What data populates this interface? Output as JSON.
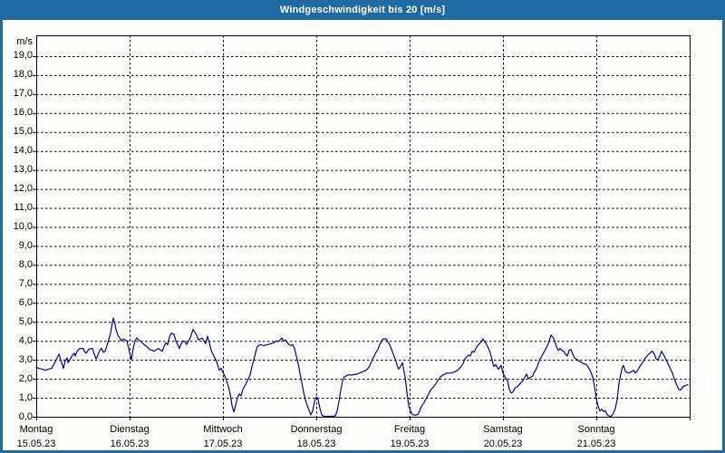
{
  "window": {
    "title": "Windgeschwindigkeit bis 20 [m/s]"
  },
  "axis": {
    "unit_label": "m/s"
  },
  "colors": {
    "titlebar": "#1f6aa1",
    "frame": "#1f6aa1",
    "background": "#fdfefb",
    "line": "#0000a8",
    "grid": "#000000",
    "text": "#000000",
    "title_text": "#ffffff"
  },
  "chart_data": {
    "type": "line",
    "title": "Windgeschwindigkeit bis 20 [m/s]",
    "ylabel": "m/s",
    "ylim": [
      0,
      20
    ],
    "ytick_step": 1,
    "decimal_separator": ",",
    "grid": "dashed",
    "legend": "none",
    "x_unit": "days",
    "xlim": [
      0,
      7
    ],
    "days": [
      {
        "name": "Montag",
        "date": "15.05.23"
      },
      {
        "name": "Dienstag",
        "date": "16.05.23"
      },
      {
        "name": "Mittwoch",
        "date": "17.05.23"
      },
      {
        "name": "Donnerstag",
        "date": "18.05.23"
      },
      {
        "name": "Freitag",
        "date": "19.05.23"
      },
      {
        "name": "Samstag",
        "date": "20.05.23"
      },
      {
        "name": "Sonntag",
        "date": "21.05.23"
      }
    ],
    "series": [
      {
        "name": "Windgeschwindigkeit [m/s]",
        "points": [
          [
            0.0,
            2.6
          ],
          [
            0.029,
            2.55
          ],
          [
            0.068,
            2.5
          ],
          [
            0.097,
            2.45
          ],
          [
            0.126,
            2.5
          ],
          [
            0.165,
            2.55
          ],
          [
            0.194,
            2.8
          ],
          [
            0.223,
            3.1
          ],
          [
            0.243,
            3.3
          ],
          [
            0.262,
            3.0
          ],
          [
            0.282,
            2.7
          ],
          [
            0.291,
            2.55
          ],
          [
            0.311,
            2.95
          ],
          [
            0.33,
            3.1
          ],
          [
            0.34,
            2.85
          ],
          [
            0.359,
            3.0
          ],
          [
            0.388,
            3.25
          ],
          [
            0.408,
            3.35
          ],
          [
            0.417,
            3.2
          ],
          [
            0.437,
            3.45
          ],
          [
            0.466,
            3.6
          ],
          [
            0.505,
            3.6
          ],
          [
            0.515,
            3.45
          ],
          [
            0.534,
            3.35
          ],
          [
            0.563,
            3.55
          ],
          [
            0.583,
            3.6
          ],
          [
            0.602,
            3.6
          ],
          [
            0.621,
            3.3
          ],
          [
            0.641,
            3.05
          ],
          [
            0.66,
            3.25
          ],
          [
            0.68,
            3.5
          ],
          [
            0.699,
            3.6
          ],
          [
            0.718,
            3.4
          ],
          [
            0.738,
            3.45
          ],
          [
            0.757,
            3.75
          ],
          [
            0.777,
            4.05
          ],
          [
            0.796,
            4.4
          ],
          [
            0.806,
            4.7
          ],
          [
            0.825,
            5.2
          ],
          [
            0.845,
            4.85
          ],
          [
            0.854,
            4.6
          ],
          [
            0.874,
            4.3
          ],
          [
            0.893,
            4.15
          ],
          [
            0.913,
            4.0
          ],
          [
            0.932,
            4.1
          ],
          [
            0.951,
            4.05
          ],
          [
            0.971,
            4.0
          ],
          [
            0.99,
            3.6
          ],
          [
            1.01,
            3.2
          ],
          [
            1.019,
            3.0
          ],
          [
            1.039,
            3.6
          ],
          [
            1.058,
            4.0
          ],
          [
            1.078,
            4.15
          ],
          [
            1.097,
            4.05
          ],
          [
            1.126,
            3.95
          ],
          [
            1.155,
            3.8
          ],
          [
            1.184,
            3.7
          ],
          [
            1.214,
            3.55
          ],
          [
            1.243,
            3.5
          ],
          [
            1.262,
            3.45
          ],
          [
            1.291,
            3.55
          ],
          [
            1.311,
            3.6
          ],
          [
            1.33,
            3.5
          ],
          [
            1.35,
            3.45
          ],
          [
            1.369,
            3.7
          ],
          [
            1.388,
            3.9
          ],
          [
            1.408,
            3.8
          ],
          [
            1.427,
            4.2
          ],
          [
            1.447,
            4.4
          ],
          [
            1.476,
            4.35
          ],
          [
            1.495,
            4.0
          ],
          [
            1.515,
            3.8
          ],
          [
            1.534,
            3.6
          ],
          [
            1.553,
            3.85
          ],
          [
            1.573,
            4.0
          ],
          [
            1.592,
            3.95
          ],
          [
            1.612,
            3.8
          ],
          [
            1.631,
            4.0
          ],
          [
            1.65,
            4.15
          ],
          [
            1.68,
            4.6
          ],
          [
            1.699,
            4.45
          ],
          [
            1.718,
            4.3
          ],
          [
            1.738,
            4.05
          ],
          [
            1.757,
            4.1
          ],
          [
            1.777,
            4.15
          ],
          [
            1.796,
            4.0
          ],
          [
            1.816,
            3.85
          ],
          [
            1.835,
            4.25
          ],
          [
            1.854,
            3.9
          ],
          [
            1.874,
            3.5
          ],
          [
            1.893,
            3.3
          ],
          [
            1.913,
            3.1
          ],
          [
            1.932,
            2.9
          ],
          [
            1.951,
            2.6
          ],
          [
            1.961,
            2.45
          ],
          [
            1.981,
            2.55
          ],
          [
            2.0,
            2.35
          ],
          [
            2.019,
            2.15
          ],
          [
            2.039,
            1.9
          ],
          [
            2.058,
            1.6
          ],
          [
            2.078,
            1.2
          ],
          [
            2.097,
            0.6
          ],
          [
            2.117,
            0.25
          ],
          [
            2.136,
            0.6
          ],
          [
            2.155,
            1.0
          ],
          [
            2.175,
            1.2
          ],
          [
            2.194,
            1.1
          ],
          [
            2.214,
            1.45
          ],
          [
            2.243,
            1.7
          ],
          [
            2.272,
            2.0
          ],
          [
            2.291,
            2.2
          ],
          [
            2.311,
            2.65
          ],
          [
            2.33,
            3.0
          ],
          [
            2.35,
            3.4
          ],
          [
            2.369,
            3.7
          ],
          [
            2.398,
            3.8
          ],
          [
            2.437,
            3.75
          ],
          [
            2.476,
            3.8
          ],
          [
            2.515,
            3.85
          ],
          [
            2.544,
            3.9
          ],
          [
            2.573,
            4.0
          ],
          [
            2.592,
            3.95
          ],
          [
            2.612,
            4.05
          ],
          [
            2.631,
            4.15
          ],
          [
            2.65,
            4.0
          ],
          [
            2.67,
            4.05
          ],
          [
            2.689,
            3.9
          ],
          [
            2.709,
            3.8
          ],
          [
            2.728,
            3.75
          ],
          [
            2.748,
            3.8
          ],
          [
            2.767,
            3.6
          ],
          [
            2.786,
            3.2
          ],
          [
            2.806,
            2.8
          ],
          [
            2.825,
            2.3
          ],
          [
            2.845,
            1.8
          ],
          [
            2.864,
            1.3
          ],
          [
            2.883,
            0.9
          ],
          [
            2.903,
            0.6
          ],
          [
            2.922,
            0.35
          ],
          [
            2.942,
            0.1
          ],
          [
            2.961,
            0.3
          ],
          [
            2.981,
            0.8
          ],
          [
            3.0,
            1.05
          ],
          [
            3.019,
            0.9
          ],
          [
            3.039,
            0.45
          ],
          [
            3.058,
            0.1
          ],
          [
            3.078,
            0.03
          ],
          [
            3.126,
            0.02
          ],
          [
            3.175,
            0.03
          ],
          [
            3.204,
            0.05
          ],
          [
            3.223,
            0.3
          ],
          [
            3.243,
            0.8
          ],
          [
            3.262,
            1.4
          ],
          [
            3.282,
            1.9
          ],
          [
            3.301,
            2.1
          ],
          [
            3.34,
            2.2
          ],
          [
            3.388,
            2.2
          ],
          [
            3.437,
            2.25
          ],
          [
            3.485,
            2.35
          ],
          [
            3.534,
            2.45
          ],
          [
            3.563,
            2.6
          ],
          [
            3.583,
            2.8
          ],
          [
            3.602,
            3.05
          ],
          [
            3.621,
            3.2
          ],
          [
            3.641,
            3.4
          ],
          [
            3.66,
            3.55
          ],
          [
            3.68,
            3.8
          ],
          [
            3.699,
            4.0
          ],
          [
            3.718,
            4.1
          ],
          [
            3.748,
            4.1
          ],
          [
            3.767,
            3.95
          ],
          [
            3.786,
            3.8
          ],
          [
            3.806,
            3.55
          ],
          [
            3.825,
            3.3
          ],
          [
            3.845,
            3.05
          ],
          [
            3.864,
            2.75
          ],
          [
            3.883,
            2.5
          ],
          [
            3.903,
            2.65
          ],
          [
            3.922,
            2.85
          ],
          [
            3.932,
            2.6
          ],
          [
            3.951,
            2.1
          ],
          [
            3.971,
            1.3
          ],
          [
            3.99,
            0.6
          ],
          [
            4.01,
            0.3
          ],
          [
            4.029,
            0.12
          ],
          [
            4.058,
            0.08
          ],
          [
            4.087,
            0.12
          ],
          [
            4.107,
            0.3
          ],
          [
            4.126,
            0.55
          ],
          [
            4.155,
            0.75
          ],
          [
            4.175,
            0.95
          ],
          [
            4.204,
            1.2
          ],
          [
            4.223,
            1.4
          ],
          [
            4.252,
            1.55
          ],
          [
            4.282,
            1.75
          ],
          [
            4.301,
            1.9
          ],
          [
            4.33,
            2.1
          ],
          [
            4.359,
            2.2
          ],
          [
            4.398,
            2.3
          ],
          [
            4.437,
            2.3
          ],
          [
            4.476,
            2.35
          ],
          [
            4.515,
            2.45
          ],
          [
            4.544,
            2.6
          ],
          [
            4.573,
            2.8
          ],
          [
            4.592,
            3.05
          ],
          [
            4.612,
            3.15
          ],
          [
            4.631,
            3.25
          ],
          [
            4.65,
            3.2
          ],
          [
            4.67,
            3.45
          ],
          [
            4.689,
            3.4
          ],
          [
            4.709,
            3.6
          ],
          [
            4.728,
            3.75
          ],
          [
            4.757,
            3.9
          ],
          [
            4.786,
            4.1
          ],
          [
            4.806,
            3.95
          ],
          [
            4.825,
            3.8
          ],
          [
            4.854,
            3.5
          ],
          [
            4.874,
            3.2
          ],
          [
            4.893,
            2.8
          ],
          [
            4.903,
            2.65
          ],
          [
            4.922,
            2.75
          ],
          [
            4.951,
            2.5
          ],
          [
            4.981,
            2.7
          ],
          [
            5.0,
            2.3
          ],
          [
            5.019,
            2.1
          ],
          [
            5.049,
            1.9
          ],
          [
            5.068,
            1.45
          ],
          [
            5.087,
            1.25
          ],
          [
            5.107,
            1.3
          ],
          [
            5.126,
            1.5
          ],
          [
            5.155,
            1.6
          ],
          [
            5.184,
            1.75
          ],
          [
            5.214,
            1.9
          ],
          [
            5.233,
            2.07
          ],
          [
            5.252,
            2.25
          ],
          [
            5.272,
            2.0
          ],
          [
            5.291,
            2.07
          ],
          [
            5.32,
            2.15
          ],
          [
            5.33,
            2.3
          ],
          [
            5.359,
            2.55
          ],
          [
            5.379,
            2.8
          ],
          [
            5.398,
            3.05
          ],
          [
            5.427,
            3.3
          ],
          [
            5.456,
            3.55
          ],
          [
            5.485,
            3.85
          ],
          [
            5.515,
            4.3
          ],
          [
            5.534,
            4.2
          ],
          [
            5.553,
            4.0
          ],
          [
            5.573,
            3.7
          ],
          [
            5.592,
            3.5
          ],
          [
            5.612,
            3.6
          ],
          [
            5.631,
            3.5
          ],
          [
            5.65,
            3.45
          ],
          [
            5.67,
            3.3
          ],
          [
            5.689,
            3.2
          ],
          [
            5.709,
            3.5
          ],
          [
            5.728,
            3.55
          ],
          [
            5.748,
            3.3
          ],
          [
            5.767,
            3.1
          ],
          [
            5.796,
            3.0
          ],
          [
            5.825,
            2.9
          ],
          [
            5.864,
            2.8
          ],
          [
            5.893,
            2.75
          ],
          [
            5.922,
            2.55
          ],
          [
            5.942,
            2.35
          ],
          [
            5.961,
            2.1
          ],
          [
            5.981,
            1.6
          ],
          [
            6.0,
            0.95
          ],
          [
            6.019,
            0.55
          ],
          [
            6.039,
            0.3
          ],
          [
            6.058,
            0.4
          ],
          [
            6.078,
            0.27
          ],
          [
            6.097,
            0.32
          ],
          [
            6.117,
            0.1
          ],
          [
            6.146,
            0.02
          ],
          [
            6.165,
            0.05
          ],
          [
            6.184,
            0.2
          ],
          [
            6.204,
            0.45
          ],
          [
            6.223,
            0.9
          ],
          [
            6.243,
            1.75
          ],
          [
            6.262,
            2.25
          ],
          [
            6.282,
            2.65
          ],
          [
            6.291,
            2.7
          ],
          [
            6.311,
            2.4
          ],
          [
            6.34,
            2.3
          ],
          [
            6.369,
            2.35
          ],
          [
            6.398,
            2.45
          ],
          [
            6.417,
            2.3
          ],
          [
            6.437,
            2.4
          ],
          [
            6.466,
            2.65
          ],
          [
            6.495,
            2.85
          ],
          [
            6.524,
            3.1
          ],
          [
            6.553,
            3.25
          ],
          [
            6.583,
            3.4
          ],
          [
            6.602,
            3.45
          ],
          [
            6.621,
            3.3
          ],
          [
            6.641,
            3.05
          ],
          [
            6.66,
            3.0
          ],
          [
            6.68,
            3.2
          ],
          [
            6.699,
            3.45
          ],
          [
            6.728,
            3.2
          ],
          [
            6.757,
            2.9
          ],
          [
            6.786,
            2.6
          ],
          [
            6.816,
            2.3
          ],
          [
            6.835,
            2.0
          ],
          [
            6.854,
            1.75
          ],
          [
            6.883,
            1.45
          ],
          [
            6.903,
            1.4
          ],
          [
            6.932,
            1.6
          ],
          [
            6.961,
            1.65
          ],
          [
            6.981,
            1.7
          ]
        ]
      }
    ]
  }
}
